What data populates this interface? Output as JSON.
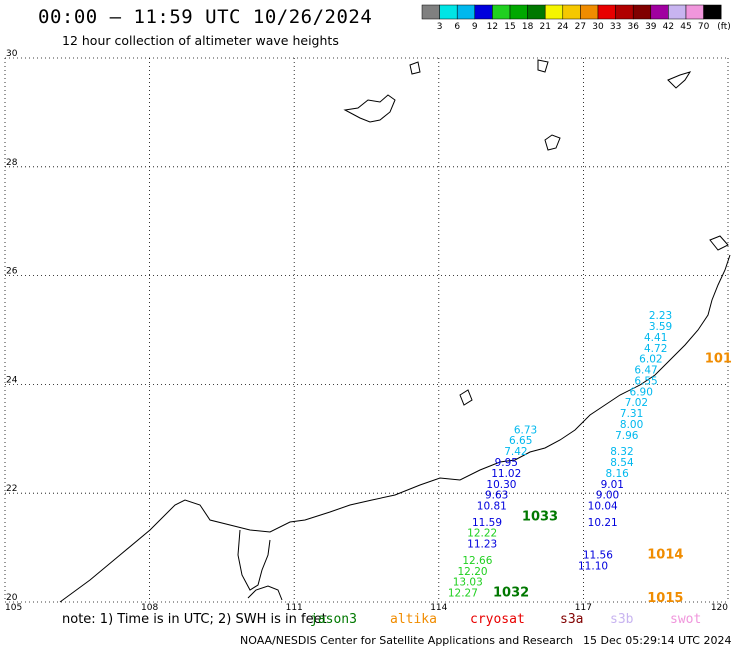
{
  "title": "00:00 – 11:59 UTC 10/26/2024",
  "subtitle": "12 hour collection of altimeter wave heights",
  "colorbar": {
    "unit": "(ft)",
    "colors": [
      "#808080",
      "#00e5e5",
      "#00b8ee",
      "#0000dd",
      "#20d020",
      "#00a800",
      "#007800",
      "#f5f500",
      "#f5c800",
      "#f08c00",
      "#e80000",
      "#b00000",
      "#800000",
      "#a000a0",
      "#c8b4f0",
      "#f096dc",
      "#000000"
    ],
    "labels": [
      "3",
      "6",
      "9",
      "12",
      "15",
      "18",
      "21",
      "24",
      "27",
      "30",
      "33",
      "36",
      "39",
      "42",
      "45",
      "70"
    ]
  },
  "axes": {
    "lon_ticks": [
      "105",
      "108",
      "111",
      "114",
      "117",
      "120"
    ],
    "lat_ticks": [
      "30",
      "28",
      "26",
      "24",
      "22",
      "20"
    ],
    "lon_range": [
      105,
      120
    ],
    "lat_range": [
      20,
      30
    ],
    "grid": "dotted"
  },
  "tracks": [
    {
      "satellite": "swot",
      "color": "#00b8ee",
      "points": [
        {
          "lon": 118.6,
          "lat": 25.2,
          "v": "2.23"
        },
        {
          "lon": 118.6,
          "lat": 25.0,
          "v": "3.59"
        },
        {
          "lon": 118.5,
          "lat": 24.8,
          "v": "4.41"
        },
        {
          "lon": 118.5,
          "lat": 24.6,
          "v": "4.72"
        },
        {
          "lon": 118.4,
          "lat": 24.4,
          "v": "6.02"
        },
        {
          "lon": 118.3,
          "lat": 24.2,
          "v": "6.47"
        },
        {
          "lon": 118.3,
          "lat": 24.0,
          "v": "6.55"
        },
        {
          "lon": 118.2,
          "lat": 23.8,
          "v": "6.90"
        },
        {
          "lon": 118.1,
          "lat": 23.6,
          "v": "7.02"
        },
        {
          "lon": 118.0,
          "lat": 23.4,
          "v": "7.31"
        },
        {
          "lon": 118.0,
          "lat": 23.2,
          "v": "8.00"
        },
        {
          "lon": 117.9,
          "lat": 23.0,
          "v": "7.96"
        },
        {
          "lon": 117.8,
          "lat": 22.7,
          "v": "8.32"
        },
        {
          "lon": 117.8,
          "lat": 22.5,
          "v": "8.54"
        },
        {
          "lon": 117.7,
          "lat": 22.3,
          "v": "8.16"
        }
      ]
    },
    {
      "satellite": "swot",
      "color": "#0000dd",
      "points": [
        {
          "lon": 117.6,
          "lat": 22.1,
          "v": "9.01"
        },
        {
          "lon": 117.5,
          "lat": 21.9,
          "v": "9.00"
        },
        {
          "lon": 117.4,
          "lat": 21.7,
          "v": "10.04"
        },
        {
          "lon": 117.4,
          "lat": 21.4,
          "v": "10.21"
        },
        {
          "lon": 117.3,
          "lat": 20.8,
          "v": "11.56"
        },
        {
          "lon": 117.2,
          "lat": 20.6,
          "v": "11.10"
        }
      ]
    },
    {
      "satellite": "s3a",
      "color": "#00b8ee",
      "points": [
        {
          "lon": 115.8,
          "lat": 23.1,
          "v": "6.73"
        },
        {
          "lon": 115.7,
          "lat": 22.9,
          "v": "6.65"
        },
        {
          "lon": 115.6,
          "lat": 22.7,
          "v": "7.42"
        }
      ]
    },
    {
      "satellite": "s3a",
      "color": "#0000dd",
      "points": [
        {
          "lon": 115.4,
          "lat": 22.5,
          "v": "9.95"
        },
        {
          "lon": 115.4,
          "lat": 22.3,
          "v": "11.02"
        },
        {
          "lon": 115.3,
          "lat": 22.1,
          "v": "10.30"
        },
        {
          "lon": 115.2,
          "lat": 21.9,
          "v": "9.63"
        },
        {
          "lon": 115.1,
          "lat": 21.7,
          "v": "10.81"
        },
        {
          "lon": 115.0,
          "lat": 21.4,
          "v": "11.59"
        }
      ]
    },
    {
      "satellite": "s3a",
      "color": "#20d020",
      "points": [
        {
          "lon": 114.9,
          "lat": 21.2,
          "v": "12.22"
        }
      ]
    },
    {
      "satellite": "s3a",
      "color": "#0000dd",
      "points": [
        {
          "lon": 114.9,
          "lat": 21.0,
          "v": "11.23"
        }
      ]
    },
    {
      "satellite": "s3a",
      "color": "#20d020",
      "points": [
        {
          "lon": 114.8,
          "lat": 20.7,
          "v": "12.66"
        },
        {
          "lon": 114.7,
          "lat": 20.5,
          "v": "12.20"
        },
        {
          "lon": 114.6,
          "lat": 20.3,
          "v": "13.03"
        },
        {
          "lon": 114.5,
          "lat": 20.1,
          "v": "12.27"
        }
      ]
    }
  ],
  "pressure_labels": [
    {
      "lon": 116.1,
      "lat": 21.5,
      "text": "1033",
      "color": "#007800"
    },
    {
      "lon": 115.5,
      "lat": 20.1,
      "text": "1032",
      "color": "#007800"
    },
    {
      "lon": 118.7,
      "lat": 20.8,
      "text": "1014",
      "color": "#f08c00"
    },
    {
      "lon": 118.7,
      "lat": 20.0,
      "text": "1015",
      "color": "#f08c00"
    },
    {
      "lon": 119.8,
      "lat": 24.4,
      "text": "101",
      "color": "#f08c00"
    }
  ],
  "note": "note: 1) Time is in UTC; 2) SWH is in feet",
  "satellites": [
    {
      "name": "jason3",
      "color": "#007800"
    },
    {
      "name": "altika",
      "color": "#f08c00"
    },
    {
      "name": "cryosat",
      "color": "#e80000"
    },
    {
      "name": "s3a",
      "color": "#800000"
    },
    {
      "name": "s3b",
      "color": "#c8b4f0"
    },
    {
      "name": "swot",
      "color": "#f096dc"
    }
  ],
  "credit": "NOAA/NESDIS Center for Satellite Applications and Research",
  "timestamp": "15 Dec 05:29:14 UTC 2024"
}
